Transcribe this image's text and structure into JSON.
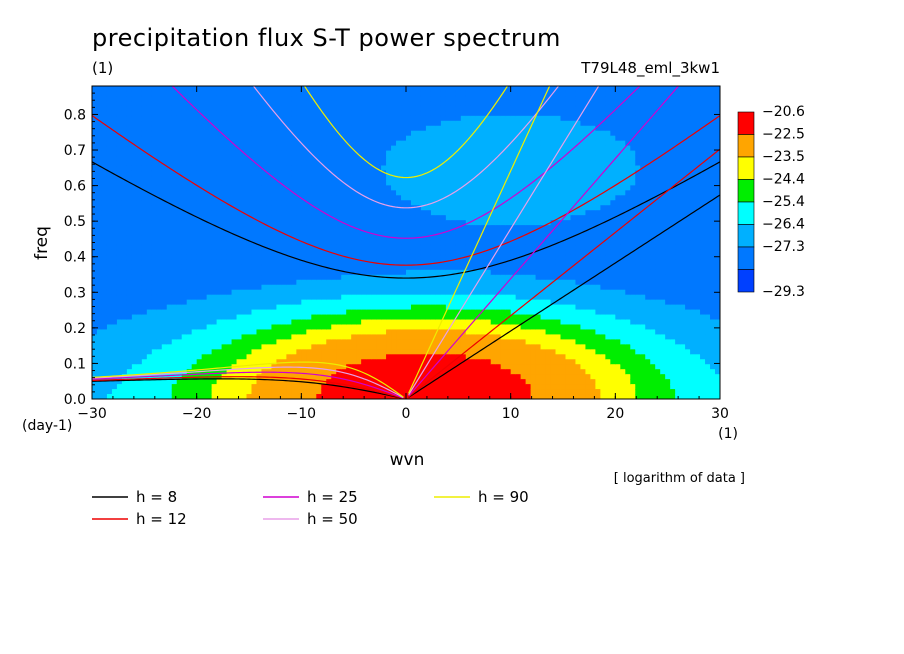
{
  "chart_data": {
    "type": "heatmap",
    "title": "precipitation flux S-T power spectrum",
    "subtitle_left": "(1)",
    "subtitle_right": "T79L48_eml_3kw1",
    "xlabel": "wvn",
    "ylabel": "freq",
    "x_unit": "(1)",
    "y_unit": "(day-1)",
    "data_note": "[ logarithm of data ]",
    "xlim": [
      -30,
      30
    ],
    "ylim": [
      0,
      0.88
    ],
    "x_ticks": [
      -30,
      -20,
      -10,
      0,
      10,
      20,
      30
    ],
    "y_ticks": [
      0.0,
      0.1,
      0.2,
      0.3,
      0.4,
      0.5,
      0.6,
      0.7,
      0.8
    ],
    "colorbar": {
      "levels": [
        "-20.6",
        "-22.5",
        "-23.5",
        "-24.4",
        "-25.4",
        "-26.4",
        "-27.3",
        "-29.3"
      ],
      "colors": [
        "#ff0000",
        "#ffa500",
        "#ffff00",
        "#00ee00",
        "#00ffff",
        "#00b0ff",
        "#0078ff",
        "#0040ff"
      ]
    },
    "dispersion_curves": [
      {
        "name": "h =  8",
        "equivalent_depth": 8,
        "color": "#000000"
      },
      {
        "name": "h = 12",
        "equivalent_depth": 12,
        "color": "#ee0000"
      },
      {
        "name": "h = 25",
        "equivalent_depth": 25,
        "color": "#d000d0"
      },
      {
        "name": "h = 50",
        "equivalent_depth": 50,
        "color": "#e8a0e8"
      },
      {
        "name": "h = 90",
        "equivalent_depth": 90,
        "color": "#eeee00"
      }
    ]
  }
}
